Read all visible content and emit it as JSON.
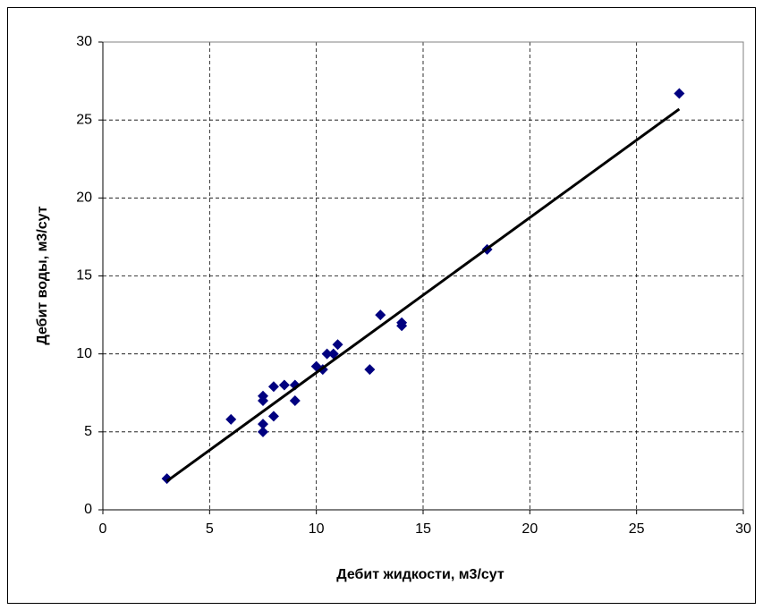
{
  "chart_data": {
    "type": "scatter",
    "x_label": "Дебит жидкости,  м3/сут",
    "y_label": "Дебит воды, м3/сут",
    "series": [
      {
        "color": "#000080",
        "x": [
          3,
          6,
          7.5,
          7.5,
          7.5,
          7.5,
          8,
          8,
          8.5,
          9,
          9,
          10,
          10.3,
          10.5,
          10.8,
          11,
          12.5,
          13,
          14,
          14,
          18,
          27
        ],
        "values": [
          2,
          5.8,
          7.3,
          7,
          5.5,
          5,
          7.9,
          6,
          8,
          8,
          7,
          9.2,
          9,
          10,
          10,
          10.6,
          9,
          12.5,
          12,
          11.8,
          16.7,
          26.7
        ]
      }
    ],
    "trendline": {
      "color": "#000000",
      "x": [
        3,
        27
      ],
      "y": [
        1.84,
        25.7
      ]
    },
    "xlim": [
      0,
      30
    ],
    "xticks": [
      0,
      5,
      10,
      15,
      20,
      25,
      30
    ],
    "ylim": [
      0,
      30
    ],
    "yticks": [
      0,
      5,
      10,
      15,
      20,
      25,
      30
    ],
    "grid": true
  }
}
